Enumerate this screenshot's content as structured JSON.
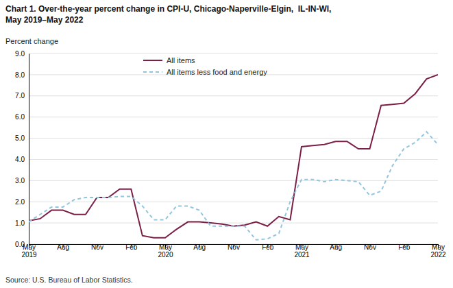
{
  "chart_data": {
    "type": "line",
    "title": "Chart 1. Over-the-year percent change in CPI-U, Chicago-Naperville-Elgin,  IL-IN-WI,\nMay 2019–May 2022",
    "y_label": "Percent change",
    "annotations": [
      "Source: U.S. Bureau of Labor Statistics."
    ],
    "categories": [
      "May\n2019",
      null,
      null,
      "Aug",
      null,
      null,
      "Nov",
      null,
      null,
      "Feb",
      null,
      null,
      "May\n2020",
      null,
      null,
      "Aug",
      null,
      null,
      "Nov",
      null,
      null,
      "Feb",
      null,
      null,
      "May\n2021",
      null,
      null,
      "Aug",
      null,
      null,
      "Nov",
      null,
      null,
      "Feb",
      null,
      null,
      "May\n2022"
    ],
    "series": [
      {
        "name": "All items",
        "color": "#7b1f47",
        "line_style": "solid",
        "values": [
          1.1,
          1.2,
          1.6,
          1.6,
          1.4,
          1.4,
          2.2,
          2.2,
          2.6,
          2.6,
          0.4,
          0.3,
          0.3,
          0.7,
          1.05,
          1.05,
          1.0,
          0.95,
          0.85,
          0.9,
          1.05,
          0.85,
          1.3,
          1.15,
          4.6,
          4.65,
          4.7,
          4.85,
          4.85,
          4.5,
          4.5,
          6.55,
          6.6,
          6.65,
          7.1,
          7.8,
          8.0
        ]
      },
      {
        "name": "All items less food and energy",
        "color": "#92c5de",
        "line_style": "dashed",
        "values": [
          1.05,
          1.4,
          1.75,
          1.75,
          2.1,
          2.2,
          2.2,
          2.2,
          2.25,
          2.25,
          1.8,
          1.15,
          1.15,
          1.8,
          1.8,
          1.6,
          0.85,
          0.85,
          0.85,
          0.85,
          0.2,
          0.25,
          0.5,
          2.0,
          3.05,
          3.05,
          2.95,
          3.05,
          3.0,
          2.95,
          2.3,
          2.5,
          3.7,
          4.5,
          4.8,
          5.3,
          4.7
        ]
      }
    ],
    "ylim": [
      0.0,
      9.0
    ],
    "yticks": [
      {
        "value": 0,
        "label": "0.0"
      },
      {
        "value": 1,
        "label": "1.0"
      },
      {
        "value": 2,
        "label": "2.0"
      },
      {
        "value": 3,
        "label": "3.0"
      },
      {
        "value": 4,
        "label": "4.0"
      },
      {
        "value": 5,
        "label": "5.0"
      },
      {
        "value": 6,
        "label": "6.0"
      },
      {
        "value": 7,
        "label": "7.0"
      },
      {
        "value": 8,
        "label": "8.0"
      },
      {
        "value": 9,
        "label": "9.0"
      }
    ],
    "grid": true,
    "legend": "upper left"
  }
}
